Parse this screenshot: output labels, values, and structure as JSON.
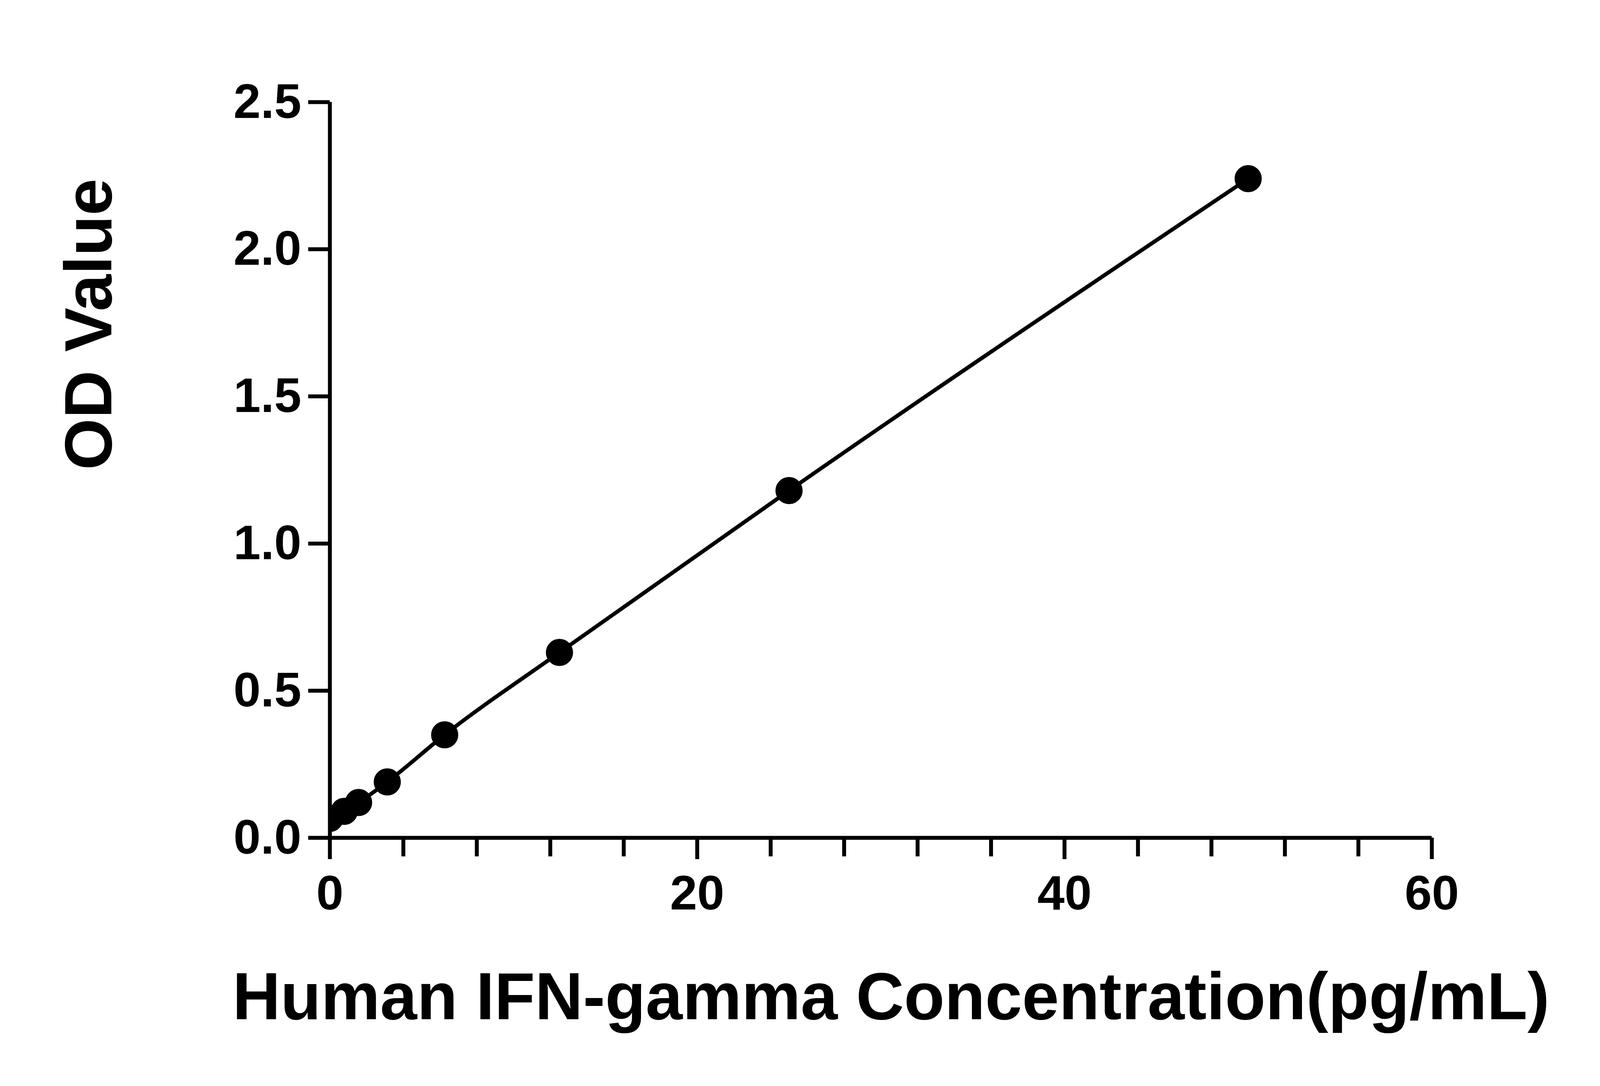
{
  "chart_data": {
    "type": "line",
    "marker": "circle",
    "color": "#000000",
    "x_label": "Human IFN-gamma Concentration(pg/mL)",
    "y_label": "OD Value",
    "x": [
      0,
      0.78,
      1.5625,
      3.125,
      6.25,
      12.5,
      25,
      50
    ],
    "values": [
      0.066,
      0.09,
      0.12,
      0.19,
      0.35,
      0.63,
      1.18,
      2.24
    ],
    "xlim": [
      0,
      60
    ],
    "xticks": [
      0,
      20,
      40,
      60
    ],
    "ylim": [
      0,
      2.5
    ],
    "yticks": [
      {
        "value": 0,
        "label": "0.0"
      },
      {
        "value": 0.5,
        "label": "0.5"
      },
      {
        "value": 1,
        "label": "1.0"
      },
      {
        "value": 1.5,
        "label": "1.5"
      },
      {
        "value": 2,
        "label": "2.0"
      },
      {
        "value": 2.5,
        "label": "2.5"
      }
    ],
    "grid": false
  }
}
